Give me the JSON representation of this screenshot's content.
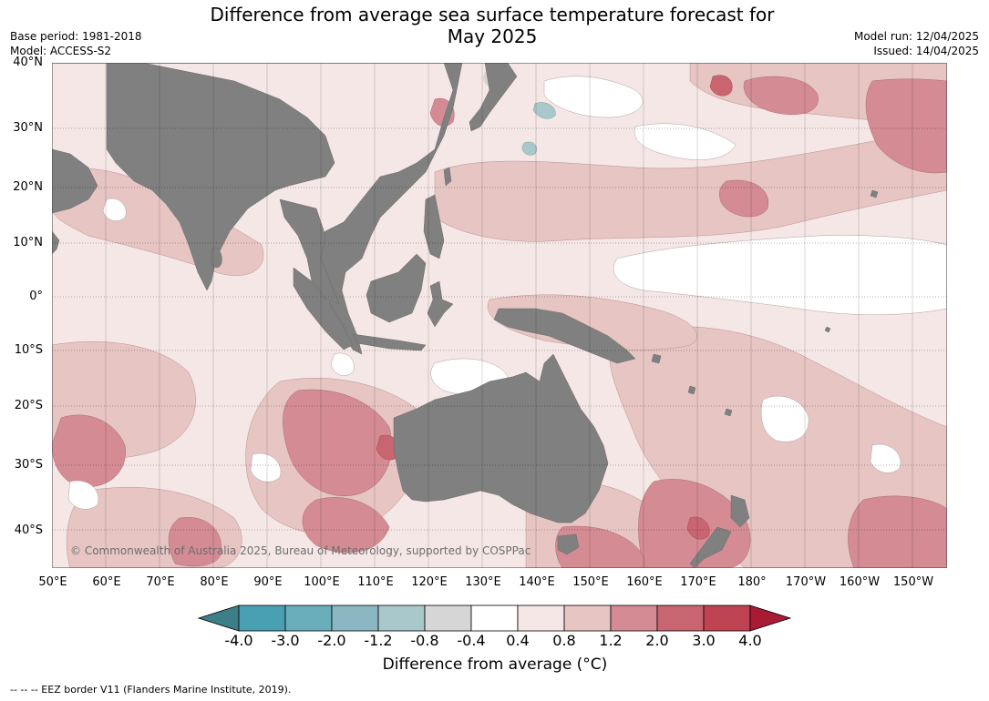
{
  "header": {
    "title_line1": "Difference from average sea surface temperature forecast for",
    "title_line2": "May 2025",
    "base_period": "Base period: 1981-2018",
    "model": "Model: ACCESS-S2",
    "model_run": "Model run: 12/04/2025",
    "issued": "Issued: 14/04/2025"
  },
  "map": {
    "land_color": "#808080",
    "ocean_background_color": "#f5e7e6",
    "lat_labels": [
      "40°N",
      "30°N",
      "20°N",
      "10°N",
      "0°",
      "10°S",
      "20°S",
      "30°S",
      "40°S"
    ],
    "lon_labels": [
      "50°E",
      "60°E",
      "70°E",
      "80°E",
      "90°E",
      "100°E",
      "110°E",
      "120°E",
      "130°E",
      "140°E",
      "150°E",
      "160°E",
      "170°E",
      "180°",
      "170°W",
      "160°W",
      "150°W"
    ],
    "copyright": "© Commonwealth of Australia 2025, Bureau of Meteorology, supported by COSPPac"
  },
  "colorbar": {
    "title": "Difference from average (°C)",
    "ticks": [
      "-4.0",
      "-3.0",
      "-2.0",
      "-1.2",
      "-0.8",
      "-0.4",
      "0.4",
      "0.8",
      "1.2",
      "2.0",
      "3.0",
      "4.0"
    ],
    "colors": [
      "#3c7f88",
      "#49a0b2",
      "#6aaebb",
      "#8ab7c2",
      "#a9c8cb",
      "#d6d6d6",
      "#ffffff",
      "#f5e7e6",
      "#e6c5c3",
      "#d48b93",
      "#c96570",
      "#be4352",
      "#a91b34"
    ]
  },
  "footer": {
    "legend": "--  --  -- EEZ border V11 (Flanders Marine Institute, 2019)."
  }
}
